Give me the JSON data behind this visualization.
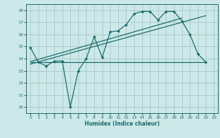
{
  "title": "",
  "xlabel": "Humidex (Indice chaleur)",
  "ylabel": "",
  "bg_color": "#cce8e8",
  "grid_color": "#aacccc",
  "line_color": "#1a6b6b",
  "xlim": [
    -0.5,
    23.5
  ],
  "ylim": [
    9.5,
    18.5
  ],
  "yticks": [
    10,
    11,
    12,
    13,
    14,
    15,
    16,
    17,
    18
  ],
  "xticks": [
    0,
    1,
    2,
    3,
    4,
    5,
    6,
    7,
    8,
    9,
    10,
    11,
    12,
    13,
    14,
    15,
    16,
    17,
    18,
    19,
    20,
    21,
    22,
    23
  ],
  "main_x": [
    0,
    1,
    2,
    3,
    4,
    5,
    6,
    7,
    8,
    9,
    10,
    11,
    12,
    13,
    14,
    15,
    16,
    17,
    18,
    19,
    20,
    21,
    22
  ],
  "main_y": [
    14.9,
    13.7,
    13.4,
    13.8,
    13.8,
    10.0,
    13.0,
    14.0,
    15.8,
    14.1,
    16.2,
    16.3,
    16.8,
    17.7,
    17.9,
    17.9,
    17.2,
    17.9,
    17.9,
    17.1,
    16.0,
    14.4,
    13.7
  ],
  "horiz_y": 13.7,
  "horiz_x_start": 0,
  "horiz_x_end": 22,
  "trend1_x": [
    0,
    22
  ],
  "trend1_y": [
    13.55,
    17.55
  ],
  "trend2_x": [
    0,
    19
  ],
  "trend2_y": [
    13.75,
    17.35
  ]
}
